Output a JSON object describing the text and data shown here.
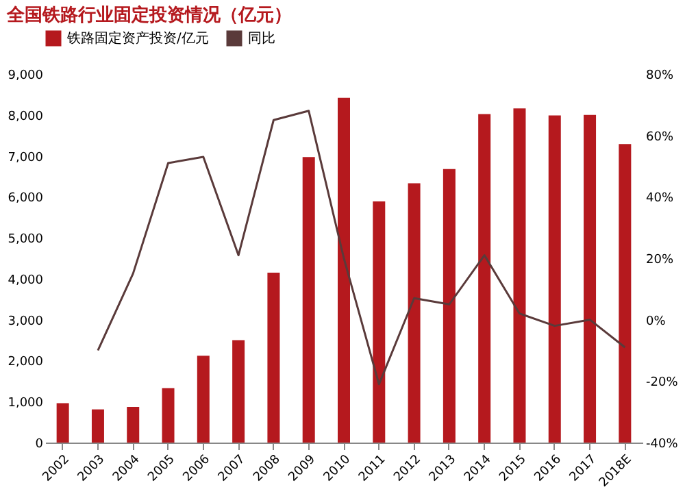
{
  "chart_data": {
    "type": "bar",
    "title": "全国铁路行业固定投资情况（亿元）",
    "categories": [
      "2002",
      "2003",
      "2004",
      "2005",
      "2006",
      "2007",
      "2008",
      "2009",
      "2010",
      "2011",
      "2012",
      "2013",
      "2014",
      "2015",
      "2016",
      "2017",
      "2018E"
    ],
    "series": [
      {
        "name": "铁路固定资产投资/亿元",
        "color": "#b5191e",
        "values": [
          960,
          810,
          870,
          1330,
          2120,
          2500,
          4150,
          6970,
          8420,
          5890,
          6330,
          6680,
          8020,
          8160,
          7990,
          8000,
          7290
        ]
      },
      {
        "name": "同比",
        "type": "line",
        "axis": "y2",
        "color": "#5a3a3a",
        "values": [
          null,
          -10,
          15,
          51,
          53,
          21,
          65,
          68,
          20,
          -21,
          7,
          5,
          21,
          2,
          -2,
          0,
          -9
        ]
      }
    ],
    "ylim": [
      0,
      9000
    ],
    "yticks": [
      {
        "value": 0,
        "label": "0"
      },
      {
        "value": 1000,
        "label": "1,000"
      },
      {
        "value": 2000,
        "label": "2,000"
      },
      {
        "value": 3000,
        "label": "3,000"
      },
      {
        "value": 4000,
        "label": "4,000"
      },
      {
        "value": 5000,
        "label": "5,000"
      },
      {
        "value": 6000,
        "label": "6,000"
      },
      {
        "value": 7000,
        "label": "7,000"
      },
      {
        "value": 8000,
        "label": "8,000"
      },
      {
        "value": 9000,
        "label": "9,000"
      }
    ],
    "y2lim": [
      -40,
      80
    ],
    "y2ticks": [
      {
        "value": -40,
        "label": "-40%"
      },
      {
        "value": -20,
        "label": "-20%"
      },
      {
        "value": 0,
        "label": "0%"
      },
      {
        "value": 20,
        "label": "20%"
      },
      {
        "value": 40,
        "label": "40%"
      },
      {
        "value": 60,
        "label": "60%"
      },
      {
        "value": 80,
        "label": "80%"
      }
    ],
    "grid": false,
    "legend": "top",
    "marker": "none",
    "line_style": "solid"
  }
}
